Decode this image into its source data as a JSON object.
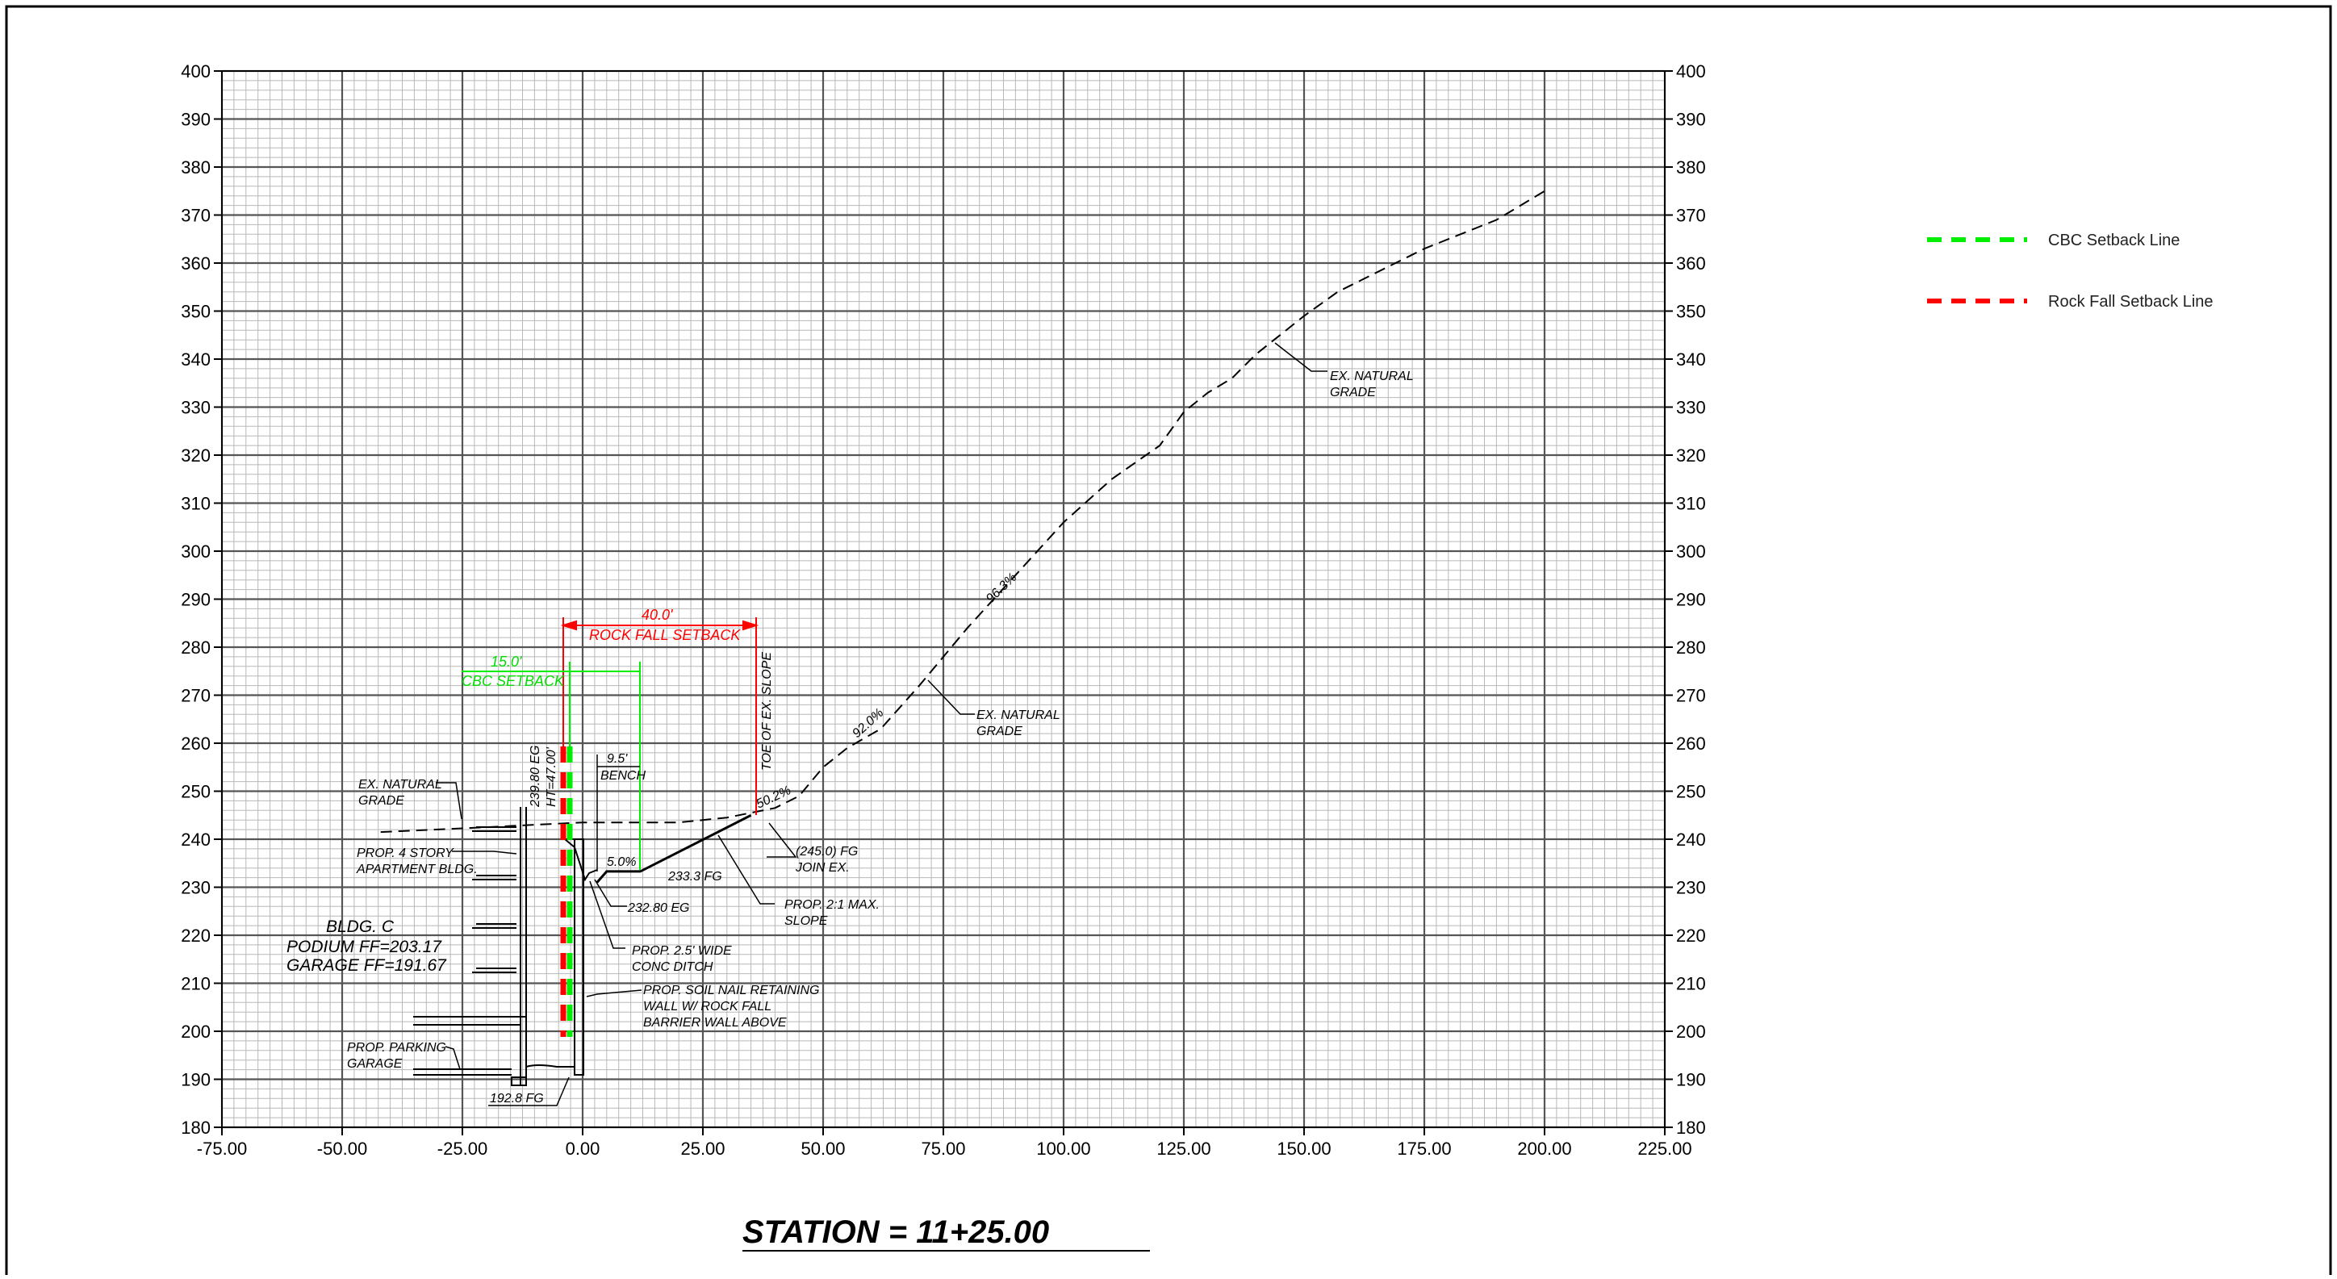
{
  "drawing": {
    "station_title": "STATION = 11+25.00",
    "bldg": {
      "name": "BLDG. C",
      "podium": "PODIUM  FF=203.17",
      "garage": "GARAGE  FF=191.67"
    },
    "setbacks": {
      "cbc_distance": "15.0'",
      "cbc_label": "CBC SETBACK",
      "rockfall_distance": "40.0'",
      "rockfall_label": "ROCK FALL SETBACK"
    },
    "labels": {
      "ex_natural_grade_left_1": "EX. NATURAL",
      "ex_natural_grade_left_2": "GRADE",
      "apartment_1": "PROP. 4 STORY",
      "apartment_2": "APARTMENT BLDG.",
      "parking_1": "PROP. PARKING",
      "parking_2": "GARAGE",
      "fg_bottom": "192.8 FG",
      "eg_vertical": "239.80 EG",
      "ht_vertical": "HT=47.00'",
      "bench_dist": "9.5'",
      "bench": "BENCH",
      "ditch_slope": "5.0%",
      "fg_bench": "233.3 FG",
      "eg_ditch": "232.80 EG",
      "ditch_1": "PROP. 2.5' WIDE",
      "ditch_2": "CONC DITCH",
      "wall_1": "PROP. SOIL NAIL RETAINING",
      "wall_2": "WALL W/ ROCK FALL",
      "wall_3": "BARRIER WALL ABOVE",
      "join_1": "(245.0) FG",
      "join_2": "JOIN EX.",
      "slope_1": "PROP. 2:1 MAX.",
      "slope_2": "SLOPE",
      "toe": "TOE OF EX. SLOPE",
      "pct_50": "50.2%",
      "pct_92": "92.0%",
      "pct_96": "96.3%",
      "ex_grade_mid_1": "EX. NATURAL",
      "ex_grade_mid_2": "GRADE",
      "ex_grade_top_1": "EX. NATURAL",
      "ex_grade_top_2": "GRADE"
    }
  },
  "legend": {
    "items": [
      {
        "label": "CBC Setback Line",
        "color": "#00ee00"
      },
      {
        "label": "Rock Fall Setback Line",
        "color": "#ff0000"
      }
    ]
  },
  "chart_data": {
    "type": "line",
    "x_ticks": [
      "-75.00",
      "-50.00",
      "-25.00",
      "0.00",
      "25.00",
      "50.00",
      "75.00",
      "100.00",
      "125.00",
      "150.00",
      "175.00",
      "200.00",
      "225.00"
    ],
    "y_ticks": [
      "180",
      "190",
      "200",
      "210",
      "220",
      "230",
      "240",
      "250",
      "260",
      "270",
      "280",
      "290",
      "300",
      "310",
      "320",
      "330",
      "340",
      "350",
      "360",
      "370",
      "380",
      "390",
      "400"
    ],
    "xlim": [
      -75,
      225
    ],
    "ylim": [
      180,
      400
    ],
    "grid": true,
    "series": [
      {
        "style": "dashed",
        "x": [
          -42,
          -20,
          -10,
          0,
          10,
          20,
          30,
          40,
          45,
          50,
          55,
          62,
          70,
          80,
          90,
          100,
          110,
          120,
          125,
          130,
          135,
          140,
          145,
          150,
          157,
          165,
          175,
          190,
          200
        ],
        "y": [
          241.5,
          242.5,
          243.0,
          243.5,
          243.5,
          243.5,
          244.5,
          246.5,
          249,
          255,
          259,
          263,
          272,
          284,
          295,
          306,
          315,
          322,
          329,
          333,
          336,
          341,
          345,
          349,
          354,
          358,
          363,
          369,
          375
        ]
      },
      {
        "style": "solid",
        "x": [
          3,
          5,
          12,
          35
        ],
        "y": [
          231,
          233.3,
          233.3,
          245
        ]
      }
    ]
  }
}
